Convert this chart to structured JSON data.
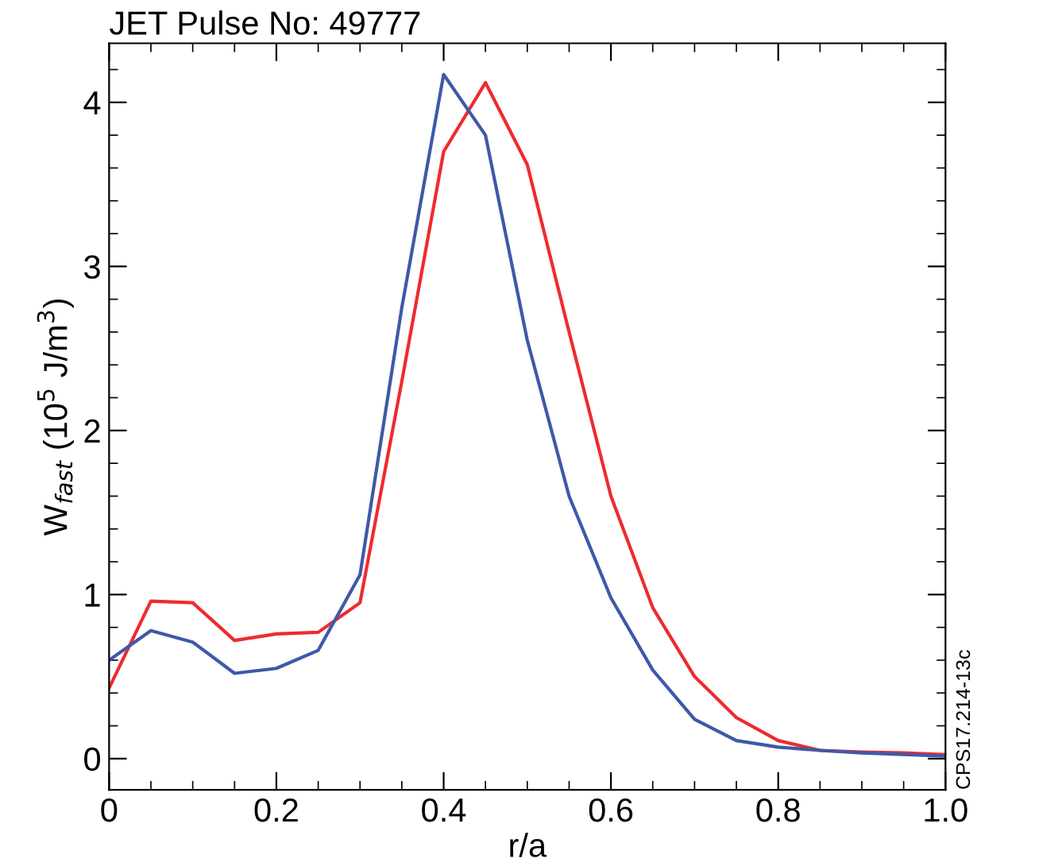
{
  "chart_data": {
    "type": "line",
    "title": "JET Pulse No: 49777",
    "xlabel": "r/a",
    "ylabel": "W$_{fast}$ (10$^{5}$ J/m$^{3}$)",
    "x": [
      0,
      0.05,
      0.1,
      0.15,
      0.2,
      0.25,
      0.3,
      0.35,
      0.4,
      0.45,
      0.5,
      0.55,
      0.6,
      0.65,
      0.7,
      0.75,
      0.8,
      0.85,
      0.9,
      0.95,
      1.0
    ],
    "series": [
      {
        "color": "#ee2b2f",
        "values": [
          0.43,
          0.96,
          0.95,
          0.72,
          0.76,
          0.77,
          0.95,
          2.3,
          3.7,
          4.12,
          3.62,
          2.6,
          1.6,
          0.92,
          0.5,
          0.25,
          0.11,
          0.05,
          0.04,
          0.035,
          0.025
        ]
      },
      {
        "color": "#3f58a8",
        "values": [
          0.6,
          0.78,
          0.71,
          0.52,
          0.55,
          0.66,
          1.12,
          2.75,
          4.17,
          3.8,
          2.55,
          1.6,
          0.98,
          0.54,
          0.24,
          0.11,
          0.07,
          0.05,
          0.035,
          0.025,
          0.015
        ]
      }
    ],
    "xlim": [
      0,
      1.0
    ],
    "xticks": [
      0,
      0.2,
      0.4,
      0.6,
      0.8,
      {
        "value": 1.0,
        "label": "1.0"
      }
    ],
    "ylim": [
      -0.19,
      4.36
    ],
    "yticks": [
      0,
      1,
      2,
      3,
      4
    ],
    "annotations": [
      "CPS17.214-13c"
    ],
    "grid": false,
    "legend": false,
    "marker": "none",
    "line_style": "solid"
  }
}
